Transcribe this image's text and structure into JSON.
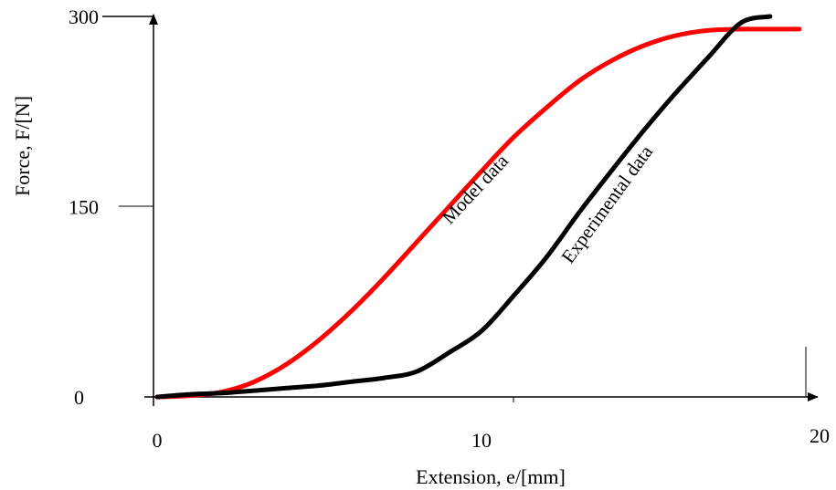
{
  "chart_data": {
    "type": "line",
    "title": "",
    "xlabel": "Extension, e/[mm]",
    "ylabel": "Force, F/[N]",
    "xlim": [
      0,
      20
    ],
    "ylim": [
      0,
      300
    ],
    "x_ticks": [
      {
        "value": 0,
        "label": "0"
      },
      {
        "value": 10,
        "label": "10"
      },
      {
        "value": 20,
        "label": "20"
      }
    ],
    "y_ticks": [
      {
        "value": 0,
        "label": "0"
      },
      {
        "value": 150,
        "label": "150"
      },
      {
        "value": 300,
        "label": "300"
      }
    ],
    "grid": false,
    "legend": "none (series labelled inline along curves)",
    "series": [
      {
        "name": "Model data",
        "color": "#ff0000",
        "x": [
          0,
          1,
          2,
          3,
          4,
          5,
          6,
          7,
          8,
          9,
          10,
          11,
          12,
          13,
          14,
          15,
          16,
          17,
          18,
          18.4,
          18.9,
          19.3,
          19.8
        ],
        "y": [
          0,
          1,
          4,
          12,
          26,
          45,
          68,
          94,
          122,
          150,
          178,
          205,
          228,
          249,
          265,
          277,
          285,
          289,
          290,
          290,
          290,
          290,
          290
        ]
      },
      {
        "name": "Experimental data",
        "color": "#000000",
        "x": [
          0,
          1,
          2,
          3,
          4,
          5,
          6,
          7,
          8,
          9,
          10,
          11,
          12,
          13,
          14,
          15,
          16,
          17,
          18,
          18.9
        ],
        "y": [
          0,
          2,
          3,
          5,
          7,
          9,
          12,
          15,
          20,
          35,
          52,
          80,
          110,
          145,
          178,
          210,
          240,
          268,
          295,
          300
        ]
      }
    ]
  }
}
